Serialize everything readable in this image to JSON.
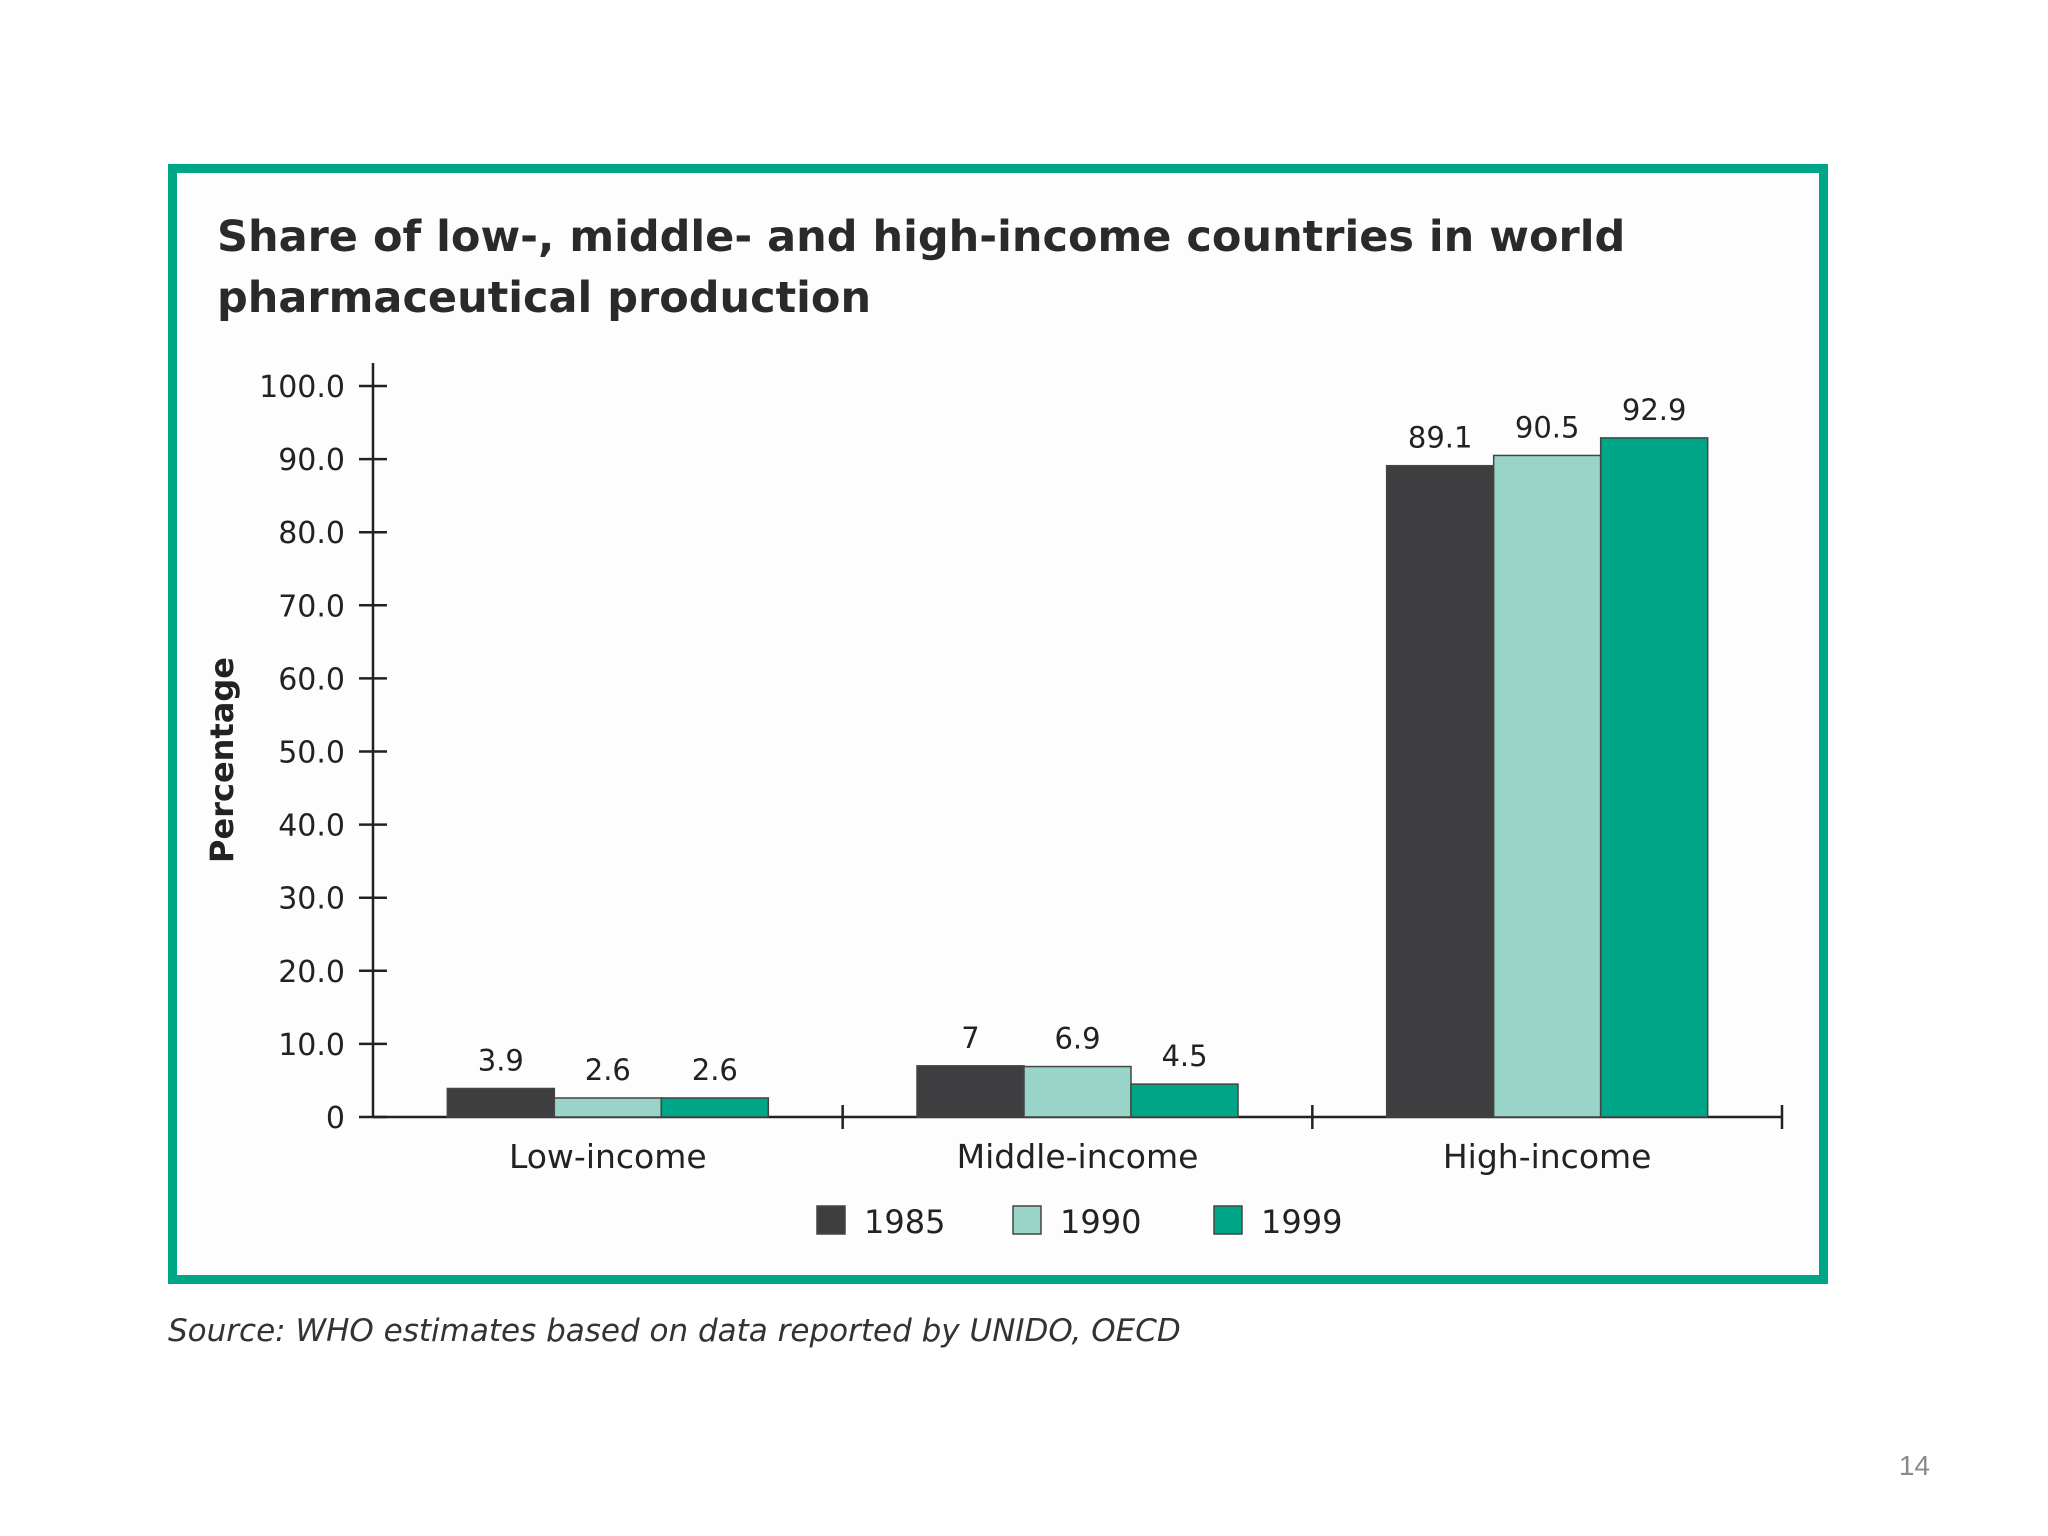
{
  "page_number": "14",
  "source_note": "Source: WHO estimates based on data reported by UNIDO, OECD",
  "colors": {
    "frame": "#00a688",
    "s1985": "#3e3d3f",
    "s1990": "#98d5c8",
    "s1999": "#00a688"
  },
  "chart_data": {
    "type": "bar",
    "title": "Share of low-, middle- and high-income countries in world pharmaceutical production",
    "title_lines": [
      "Share of low-, middle- and high-income countries in world",
      "pharmaceutical production"
    ],
    "xlabel": "",
    "ylabel": "Percentage",
    "ylim": [
      0,
      100
    ],
    "yticks": [
      0,
      10,
      20,
      30,
      40,
      50,
      60,
      70,
      80,
      90,
      100
    ],
    "ytick_labels": [
      "0",
      "10.0",
      "20.0",
      "30.0",
      "40.0",
      "50.0",
      "60.0",
      "70.0",
      "80.0",
      "90.0",
      "100.0"
    ],
    "categories": [
      "Low-income",
      "Middle-income",
      "High-income"
    ],
    "series": [
      {
        "name": "1985",
        "color": "#3e3d3f",
        "values": [
          3.9,
          7,
          89.1
        ],
        "labels": [
          "3.9",
          "7",
          "89.1"
        ]
      },
      {
        "name": "1990",
        "color": "#98d5c8",
        "values": [
          2.6,
          6.9,
          90.5
        ],
        "labels": [
          "2.6",
          "6.9",
          "90.5"
        ]
      },
      {
        "name": "1999",
        "color": "#00a688",
        "values": [
          2.6,
          4.5,
          92.9
        ],
        "labels": [
          "2.6",
          "4.5",
          "92.9"
        ]
      }
    ],
    "legend_position": "bottom-center",
    "grid": false
  }
}
